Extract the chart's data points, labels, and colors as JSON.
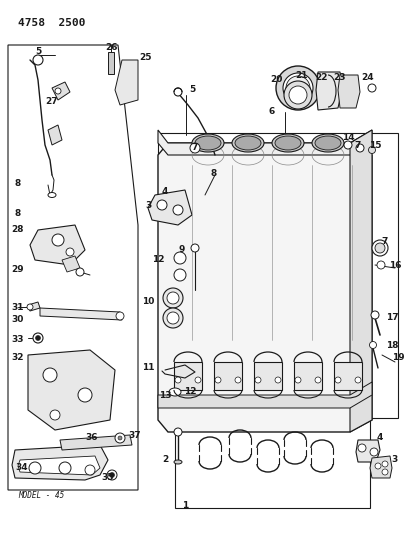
{
  "title": "4758  2500",
  "model": "MODEL - 45",
  "bg": "#ffffff",
  "lc": "#1a1a1a",
  "fw": 4.08,
  "fh": 5.33,
  "dpi": 100
}
